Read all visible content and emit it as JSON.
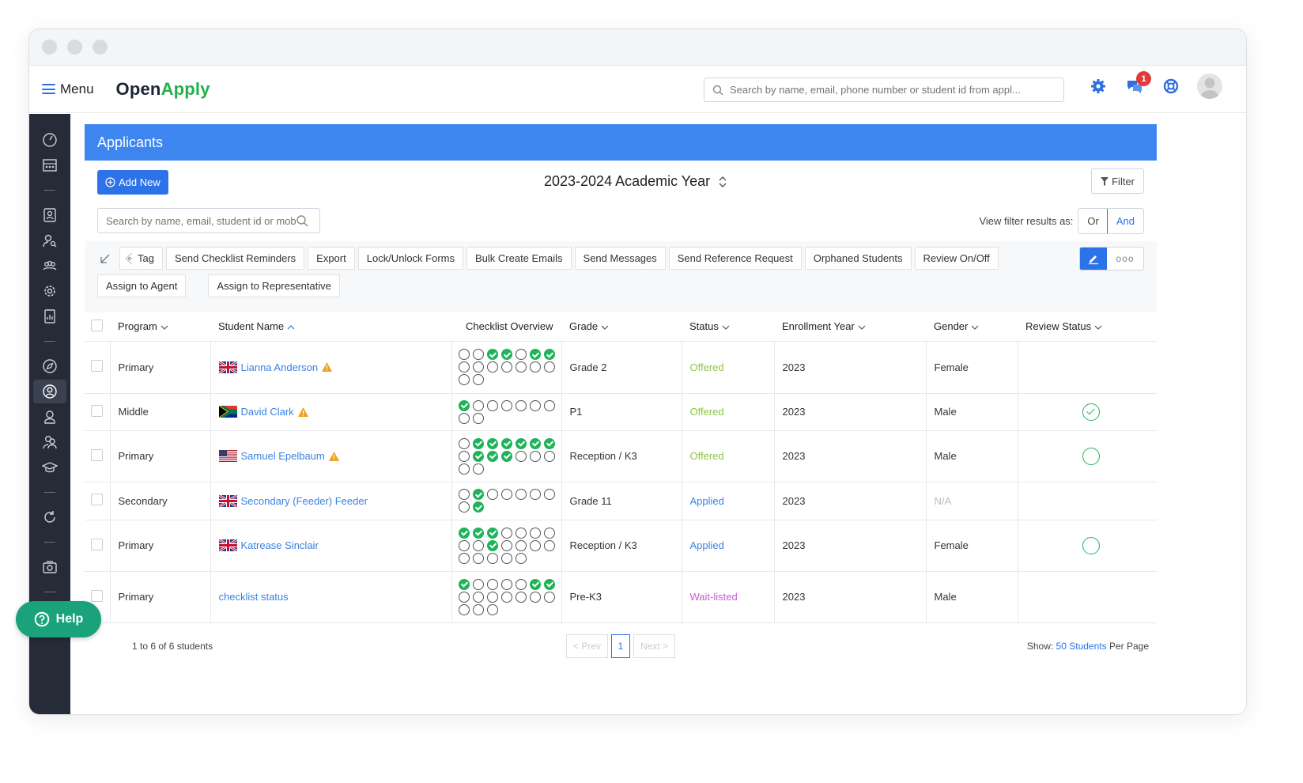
{
  "app": {
    "menu_label": "Menu",
    "brand_part1": "Open",
    "brand_part2": "Apply",
    "global_search_placeholder": "Search by name, email, phone number or student id from appl...",
    "notification_count": "1"
  },
  "panel": {
    "title": "Applicants",
    "add_new_label": "Add New",
    "academic_year": "2023-2024 Academic Year",
    "filter_label": "Filter",
    "search_placeholder": "Search by name, email, student id or mobi",
    "view_filter_label": "View filter results as:",
    "or_label": "Or",
    "and_label": "And",
    "selected_mode": "And"
  },
  "toolbar": {
    "buttons": [
      "Tag",
      "Send Checklist Reminders",
      "Export",
      "Lock/Unlock Forms",
      "Bulk Create Emails",
      "Send Messages",
      "Send Reference Request",
      "Orphaned Students",
      "Review On/Off",
      "Assign to Agent",
      "Assign to Representative"
    ],
    "more_label": "ooo"
  },
  "table": {
    "columns": [
      "Program",
      "Student Name",
      "Checklist Overview",
      "Grade",
      "Status",
      "Enrollment Year",
      "Gender",
      "Review Status"
    ],
    "rows": [
      {
        "program": "Primary",
        "name": "Lianna Anderson",
        "flag": "uk",
        "warn": true,
        "checklist": [
          0,
          0,
          1,
          1,
          0,
          1,
          1,
          0,
          0,
          0,
          0,
          0,
          0,
          0,
          0,
          0
        ],
        "grade": "Grade 2",
        "status": "Offered",
        "status_type": "offered",
        "year": "2023",
        "gender": "Female",
        "review": "none"
      },
      {
        "program": "Middle",
        "name": "David Clark",
        "flag": "za",
        "warn": true,
        "checklist": [
          1,
          0,
          0,
          0,
          0,
          0,
          0,
          0,
          0
        ],
        "grade": "P1",
        "status": "Offered",
        "status_type": "offered",
        "year": "2023",
        "gender": "Male",
        "review": "checked"
      },
      {
        "program": "Primary",
        "name": "Samuel Epelbaum",
        "flag": "us",
        "warn": true,
        "checklist": [
          0,
          1,
          1,
          1,
          1,
          1,
          1,
          0,
          1,
          1,
          1,
          0,
          0,
          0,
          0,
          0
        ],
        "grade": "Reception / K3",
        "status": "Offered",
        "status_type": "offered",
        "year": "2023",
        "gender": "Male",
        "review": "open"
      },
      {
        "program": "Secondary",
        "name": "Secondary (Feeder) Feeder",
        "flag": "uk",
        "warn": false,
        "checklist": [
          0,
          1,
          0,
          0,
          0,
          0,
          0,
          0,
          1
        ],
        "grade": "Grade 11",
        "status": "Applied",
        "status_type": "applied",
        "year": "2023",
        "gender": "N/A",
        "review": "none"
      },
      {
        "program": "Primary",
        "name": "Katrease Sinclair",
        "flag": "uk",
        "warn": false,
        "checklist": [
          1,
          1,
          1,
          0,
          0,
          0,
          0,
          0,
          0,
          1,
          0,
          0,
          0,
          0,
          0,
          0,
          0,
          0,
          0
        ],
        "grade": "Reception / K3",
        "status": "Applied",
        "status_type": "applied",
        "year": "2023",
        "gender": "Female",
        "review": "open"
      },
      {
        "program": "Primary",
        "name": "checklist status",
        "flag": "",
        "warn": false,
        "checklist": [
          1,
          0,
          0,
          0,
          0,
          1,
          1,
          0,
          0,
          0,
          0,
          0,
          0,
          0,
          0,
          0,
          0
        ],
        "grade": "Pre-K3",
        "status": "Wait-listed",
        "status_type": "wait",
        "year": "2023",
        "gender": "Male",
        "review": "none"
      }
    ]
  },
  "footer": {
    "count_text": "1 to 6 of 6 students",
    "prev_label": "< Prev",
    "page": "1",
    "next_label": "Next >",
    "show_label": "Show:",
    "per_page_value": "50 Students",
    "per_page_suffix": "Per Page"
  },
  "help_label": "Help",
  "colors": {
    "header_blue": "#3d86f0",
    "brand_green": "#21b04a",
    "sidebar_bg": "#252c38",
    "check_green": "#1fb35a",
    "offered": "#8cc63f",
    "applied": "#3b82e0",
    "waitlisted": "#c45ecf",
    "help_button": "#1aa37a"
  }
}
